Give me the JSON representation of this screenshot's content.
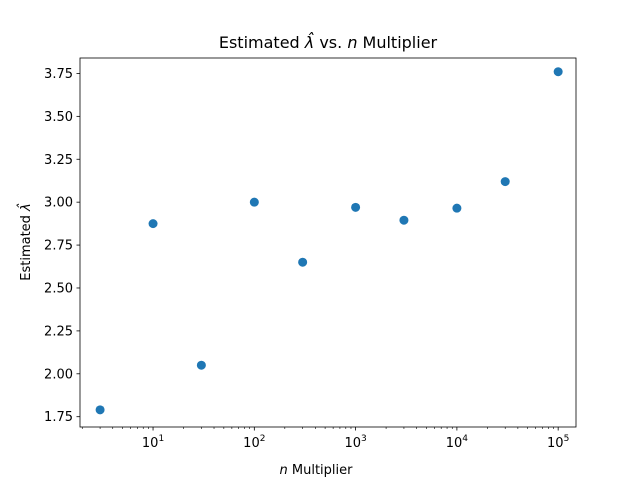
{
  "chart_data": {
    "type": "scatter",
    "title": "Estimated λ̂ vs. n Multiplier",
    "title_parts": {
      "pre": "Estimated ",
      "lambda_hat": "λ̂",
      "mid": " vs. ",
      "n": "n",
      "post": " Multiplier"
    },
    "xlabel": "n Multiplier",
    "xlabel_parts": {
      "n": "n",
      "rest": " Multiplier"
    },
    "ylabel": "Estimated λ̂",
    "ylabel_parts": {
      "pre": "Estimated ",
      "lambda_hat": "λ̂"
    },
    "xscale": "log",
    "xlim": [
      1.9,
      150000
    ],
    "ylim": [
      1.69,
      3.84
    ],
    "grid": false,
    "marker_color": "#1f77b4",
    "x": [
      3,
      10,
      30,
      100,
      300,
      1000,
      3000,
      10000,
      30000,
      100000
    ],
    "y": [
      1.79,
      2.875,
      2.05,
      3.0,
      2.65,
      2.97,
      2.895,
      2.965,
      3.12,
      3.76
    ],
    "x_ticks": [
      {
        "value": 10,
        "base": "10",
        "exp": "1"
      },
      {
        "value": 100,
        "base": "10",
        "exp": "2"
      },
      {
        "value": 1000,
        "base": "10",
        "exp": "3"
      },
      {
        "value": 10000,
        "base": "10",
        "exp": "4"
      },
      {
        "value": 100000,
        "base": "10",
        "exp": "5"
      }
    ],
    "y_ticks": [
      "1.75",
      "2.00",
      "2.25",
      "2.50",
      "2.75",
      "3.00",
      "3.25",
      "3.50",
      "3.75"
    ]
  }
}
